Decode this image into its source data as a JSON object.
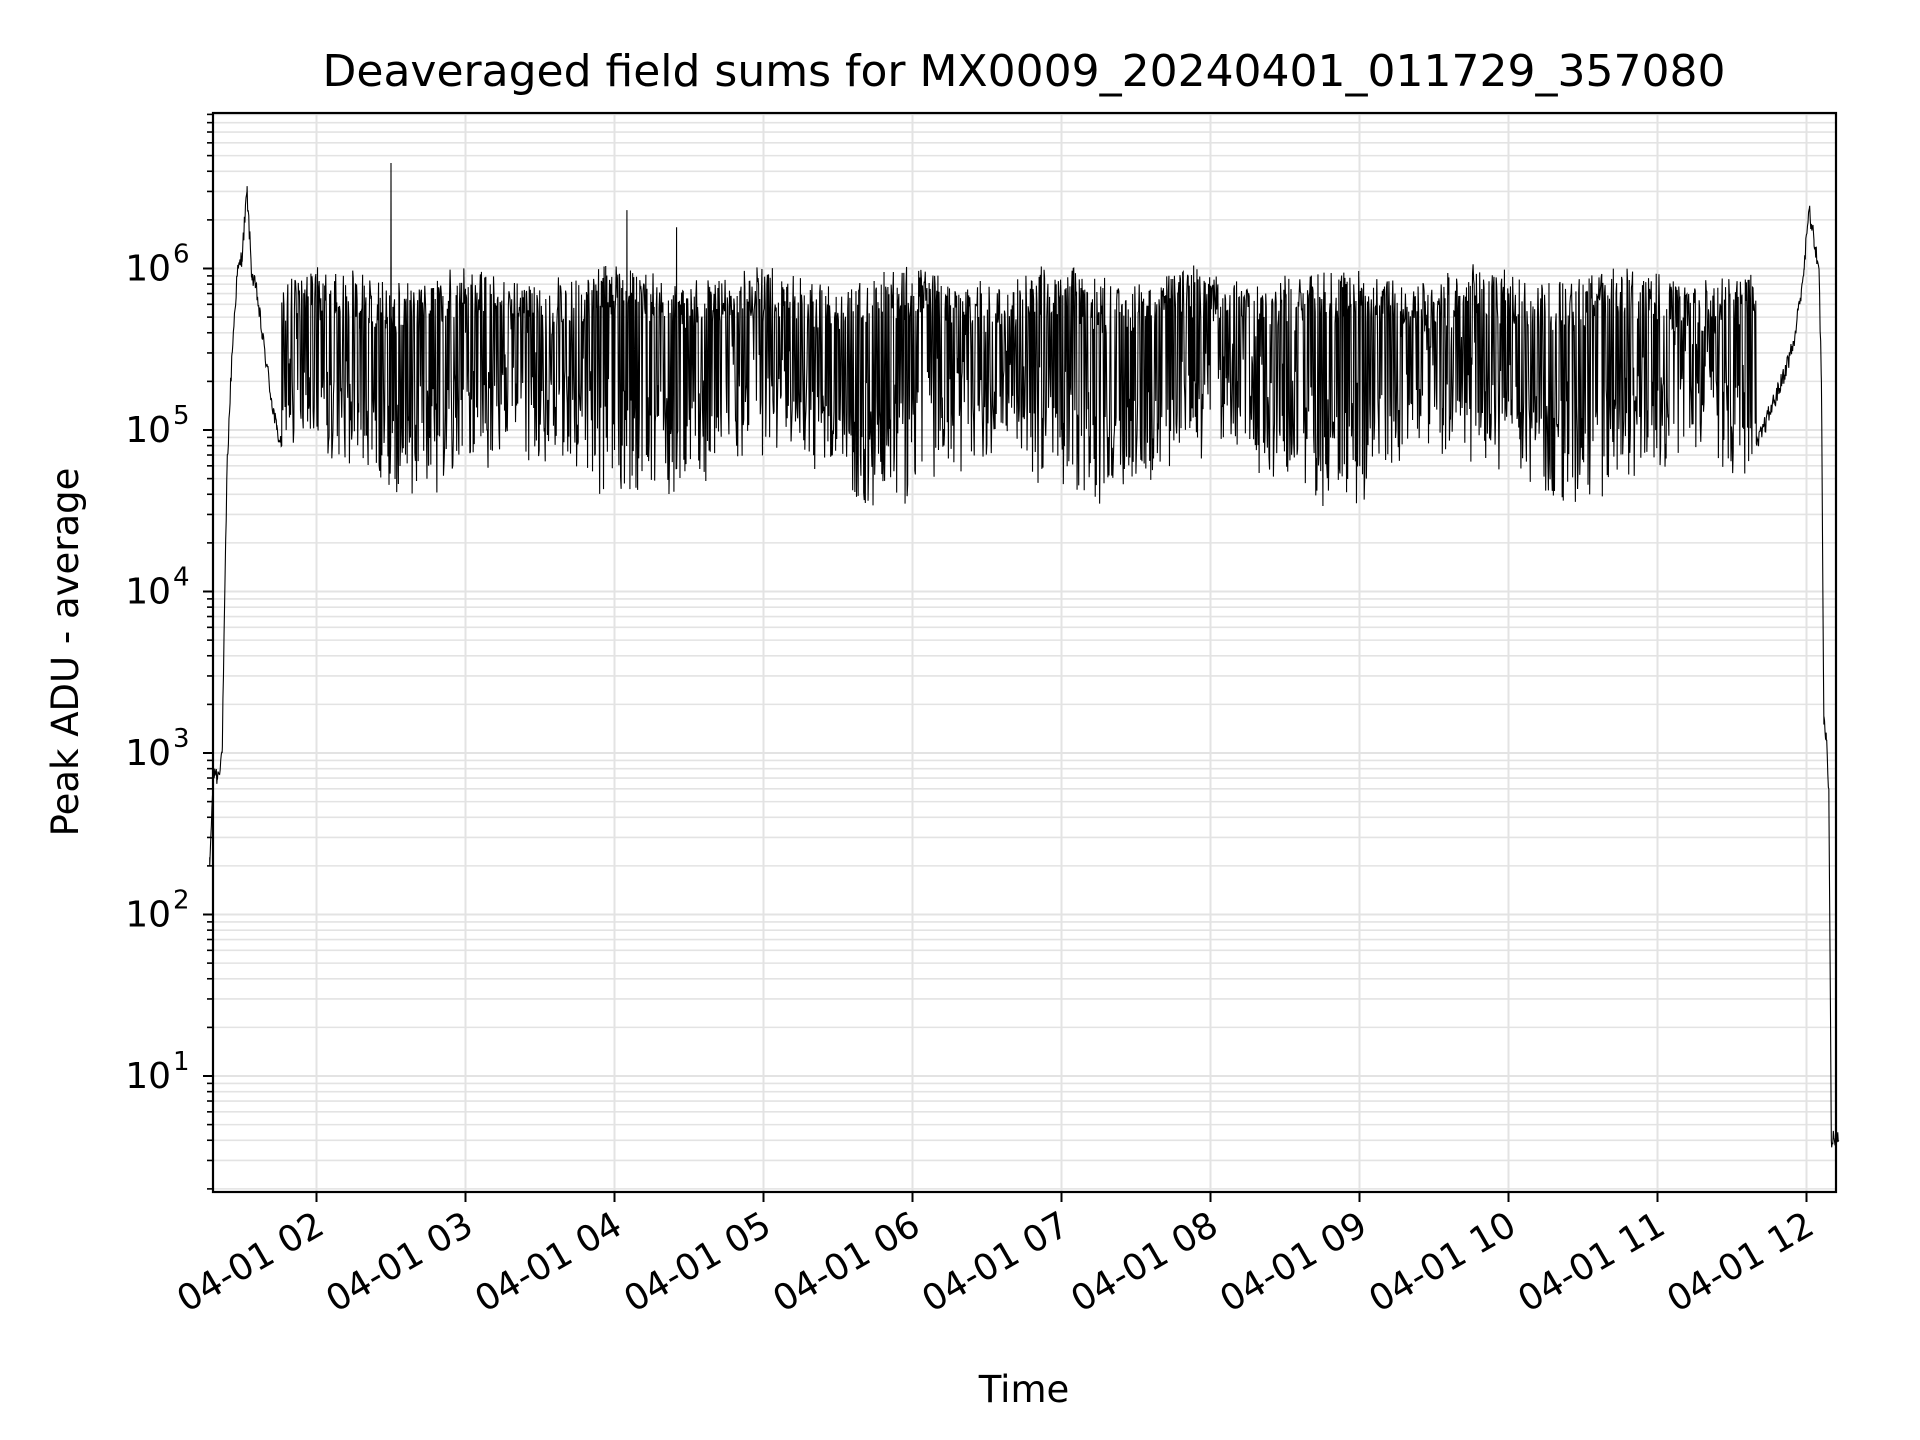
{
  "chart_data": {
    "type": "line",
    "title": "Deaveraged field sums for MX0009_20240401_011729_357080",
    "xlabel": "Time",
    "ylabel": "Peak ADU - average",
    "yscale": "log",
    "ylim": [
      1.8,
      9000000
    ],
    "xlim": [
      "2024-04-01 01:17:29",
      "2024-04-01 12:13:00"
    ],
    "grid": "on (major and minor)",
    "colors": {
      "line": "#000000",
      "grid": "#e3e3e3",
      "axes": "#000000",
      "background": "#ffffff"
    },
    "x_ticks": [
      {
        "label": "04-01 02",
        "value": "2024-04-01 02:00"
      },
      {
        "label": "04-01 03",
        "value": "2024-04-01 03:00"
      },
      {
        "label": "04-01 04",
        "value": "2024-04-01 04:00"
      },
      {
        "label": "04-01 05",
        "value": "2024-04-01 05:00"
      },
      {
        "label": "04-01 06",
        "value": "2024-04-01 06:00"
      },
      {
        "label": "04-01 07",
        "value": "2024-04-01 07:00"
      },
      {
        "label": "04-01 08",
        "value": "2024-04-01 08:00"
      },
      {
        "label": "04-01 09",
        "value": "2024-04-01 09:00"
      },
      {
        "label": "04-01 10",
        "value": "2024-04-01 10:00"
      },
      {
        "label": "04-01 11",
        "value": "2024-04-01 11:00"
      },
      {
        "label": "04-01 12",
        "value": "2024-04-01 12:00"
      }
    ],
    "y_ticks": [
      {
        "base": "10",
        "exp": "1",
        "value": 10
      },
      {
        "base": "10",
        "exp": "2",
        "value": 100
      },
      {
        "base": "10",
        "exp": "3",
        "value": 1000
      },
      {
        "base": "10",
        "exp": "4",
        "value": 10000
      },
      {
        "base": "10",
        "exp": "5",
        "value": 100000
      },
      {
        "base": "10",
        "exp": "6",
        "value": 1000000
      }
    ],
    "series": [
      {
        "values_note_x": "time (2024-04-01 HH:MM)",
        "x": [
          "01:17",
          "01:18",
          "01:19",
          "01:20",
          "01:22",
          "01:24",
          "01:26",
          "01:28",
          "01:30",
          "01:32",
          "01:34",
          "01:36",
          "01:38",
          "01:40",
          "01:42",
          "01:44",
          "01:46",
          "02:30",
          "02:31",
          "03:00",
          "04:05",
          "04:25",
          "05:57",
          "07:00",
          "08:00",
          "09:00",
          "10:00",
          "11:00",
          "11:40",
          "11:50",
          "11:55",
          "11:59",
          "12:01",
          "12:03",
          "12:05",
          "12:06",
          "12:07",
          "12:08",
          "12:09",
          "12:10",
          "12:13"
        ],
        "y": [
          200,
          500,
          800,
          700,
          1000,
          60000,
          300000,
          900000,
          1200000,
          3000000,
          900000,
          700000,
          400000,
          250000,
          150000,
          100000,
          80000,
          4500000,
          150000,
          400000,
          2300000,
          1800000,
          35000,
          100000,
          600000,
          500000,
          150000,
          200000,
          80000,
          200000,
          350000,
          1000000,
          2300000,
          1500000,
          1000000,
          200000,
          1500,
          1200,
          600,
          4,
          4
        ]
      }
    ]
  }
}
